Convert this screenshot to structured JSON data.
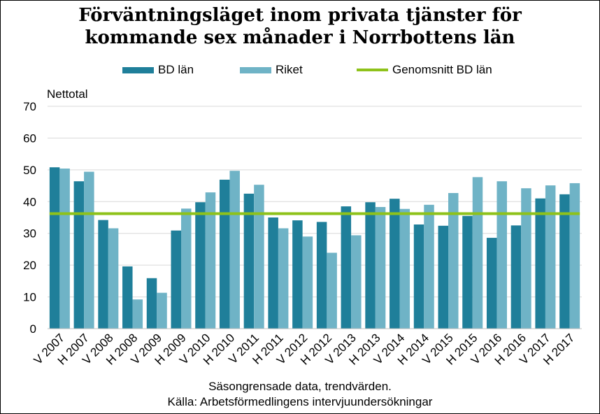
{
  "title_line1": "Förväntningsläget inom privata tjänster för",
  "title_line2": "kommande sex månader i Norrbottens län",
  "caption_line1": "Säsongrensade data, trendvärden.",
  "caption_line2": "Källa: Arbetsförmedlingens  intervjuundersökningar",
  "colors": {
    "bd": "#1f7f9a",
    "riket": "#6fb3c6",
    "avg": "#8ec21a",
    "grid": "#d9d9d9"
  },
  "chart_data": {
    "type": "bar",
    "ylabel": "Nettotal",
    "ylim": [
      0,
      70
    ],
    "yticks": [
      "0",
      "10",
      "20",
      "30",
      "40",
      "50",
      "60",
      "70"
    ],
    "grid": true,
    "legend_position": "top",
    "categories": [
      "V 2007",
      "H 2007",
      "V 2008",
      "H 2008",
      "V 2009",
      "H 2009",
      "V 2010",
      "H 2010",
      "V 2011",
      "H 2011",
      "V 2012",
      "H 2012",
      "V 2013",
      "H 2013",
      "V 2014",
      "H 2014",
      "V 2015",
      "H 2015",
      "V 2016",
      "H 2016",
      "V 2017",
      "H 2017"
    ],
    "series": [
      {
        "name": "BD län",
        "values": [
          50.8,
          46.4,
          34.2,
          19.6,
          15.9,
          30.9,
          39.8,
          46.9,
          42.5,
          35.0,
          34.1,
          33.6,
          38.5,
          39.8,
          40.9,
          32.8,
          32.4,
          35.5,
          28.6,
          32.5,
          41.0,
          42.3
        ]
      },
      {
        "name": "Riket",
        "values": [
          50.4,
          49.4,
          31.6,
          9.2,
          11.3,
          37.8,
          42.9,
          49.7,
          45.3,
          31.6,
          29.0,
          23.9,
          29.4,
          38.3,
          37.7,
          39.0,
          42.7,
          47.7,
          46.4,
          44.2,
          45.1,
          45.8
        ]
      }
    ],
    "reference_line": {
      "name": "Genomsnitt BD län",
      "value": 36.2
    }
  }
}
